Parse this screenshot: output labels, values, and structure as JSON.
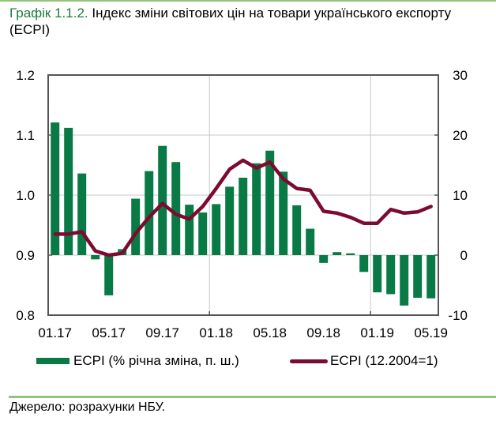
{
  "title": {
    "number": "Графік 1.1.2.",
    "text": " Індекс  зміни світових цін на товари українського експорту (ECPI)"
  },
  "colors": {
    "bar": "#097a46",
    "line": "#7b0c30",
    "accent_rule": "#93c47d",
    "title_number": "#1d7a3e",
    "gridline": "#c8c8c8",
    "axis": "#555555"
  },
  "legend": {
    "bar_label": "ECPI (% річна зміна, п. ш.)",
    "line_label": "ECPI (12.2004=1)"
  },
  "source": "Джерело: розрахунки НБУ.",
  "chart_data": {
    "type": "bar+line",
    "title": "Індекс зміни світових цін на товари українського експорту (ECPI)",
    "xlabel": "",
    "ylabel_left": "ECPI (12.2004=1)",
    "ylabel_right": "ECPI (% річна зміна, п. ш.)",
    "ylim_left": [
      0.8,
      1.2
    ],
    "yticks_left": [
      "0.8",
      "0.9",
      "1.0",
      "1.1",
      "1.2"
    ],
    "ylim_right": [
      -10,
      30
    ],
    "yticks_right": [
      "-10",
      "0",
      "10",
      "20",
      "30"
    ],
    "grid": true,
    "legend_position": "bottom",
    "categories": [
      "01.17",
      "02.17",
      "03.17",
      "04.17",
      "05.17",
      "06.17",
      "07.17",
      "08.17",
      "09.17",
      "10.17",
      "11.17",
      "12.17",
      "01.18",
      "02.18",
      "03.18",
      "04.18",
      "05.18",
      "06.18",
      "07.18",
      "08.18",
      "09.18",
      "10.18",
      "11.18",
      "12.18",
      "01.19",
      "02.19",
      "03.19",
      "04.19",
      "05.19"
    ],
    "xtick_labels": [
      "01.17",
      "05.17",
      "09.17",
      "01.18",
      "05.18",
      "09.18",
      "01.19",
      "05.19"
    ],
    "series": [
      {
        "name": "ECPI (% річна зміна, п. ш.)",
        "type": "bar",
        "axis": "right",
        "values": [
          22.1,
          21.2,
          13.6,
          -0.7,
          -6.7,
          1.0,
          9.4,
          14.0,
          18.2,
          15.5,
          8.4,
          7.1,
          8.5,
          11.4,
          12.9,
          15.3,
          17.4,
          13.9,
          8.3,
          4.4,
          -1.3,
          0.5,
          0.3,
          -2.8,
          -6.2,
          -6.5,
          -8.4,
          -7.1,
          -7.2
        ]
      },
      {
        "name": "ECPI (12.2004=1)",
        "type": "line",
        "axis": "left",
        "values": [
          0.935,
          0.935,
          0.939,
          0.907,
          0.9,
          0.903,
          0.936,
          0.963,
          0.986,
          0.968,
          0.96,
          0.981,
          1.011,
          1.043,
          1.058,
          1.045,
          1.055,
          1.027,
          1.011,
          1.008,
          0.973,
          0.97,
          0.963,
          0.953,
          0.953,
          0.976,
          0.97,
          0.972,
          0.981
        ]
      }
    ]
  }
}
